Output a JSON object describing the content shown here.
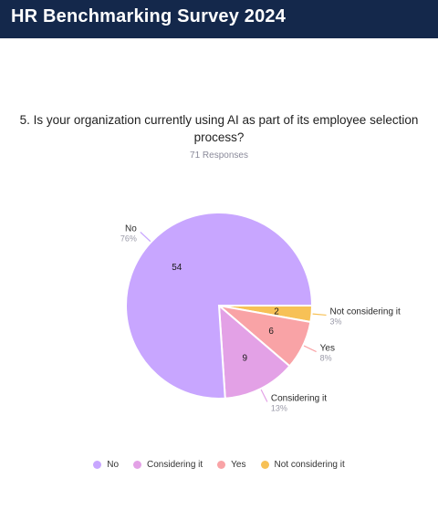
{
  "header": {
    "title": "HR Benchmarking Survey 2024"
  },
  "question": {
    "text": "5. Is your organization currently using AI as part of its employee selection process?",
    "responses": "71 Responses"
  },
  "chart_data": {
    "type": "pie",
    "total": 71,
    "slices": [
      {
        "name": "No",
        "value": 54,
        "percent_label": "76%",
        "color": "#c8a6ff"
      },
      {
        "name": "Considering it",
        "value": 9,
        "percent_label": "13%",
        "color": "#e3a1e6"
      },
      {
        "name": "Yes",
        "value": 6,
        "percent_label": "8%",
        "color": "#f9a3a6"
      },
      {
        "name": "Not considering it",
        "value": 2,
        "percent_label": "3%",
        "color": "#f7c156"
      }
    ],
    "legend_position": "bottom"
  }
}
